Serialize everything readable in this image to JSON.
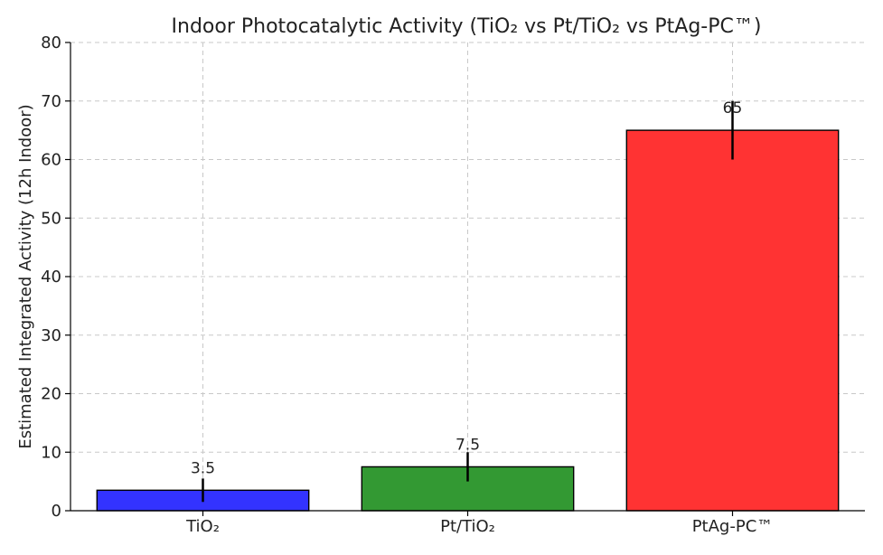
{
  "chart_data": {
    "type": "bar",
    "title": "Indoor Photocatalytic Activity (TiO₂ vs Pt/TiO₂ vs PtAg-PC™)",
    "xlabel": "",
    "ylabel": "Estimated Integrated Activity (12h Indoor)",
    "categories": [
      "TiO₂",
      "Pt/TiO₂",
      "PtAg-PC™"
    ],
    "values": [
      3.5,
      7.5,
      65
    ],
    "errors": [
      2,
      2.5,
      5
    ],
    "data_labels": [
      "3.5",
      "7.5",
      "65"
    ],
    "colors": [
      "#3333ff",
      "#339933",
      "#ff3333"
    ],
    "ylim": [
      0,
      80
    ],
    "yticks": [
      0,
      10,
      20,
      30,
      40,
      50,
      60,
      70,
      80
    ],
    "grid": true
  }
}
